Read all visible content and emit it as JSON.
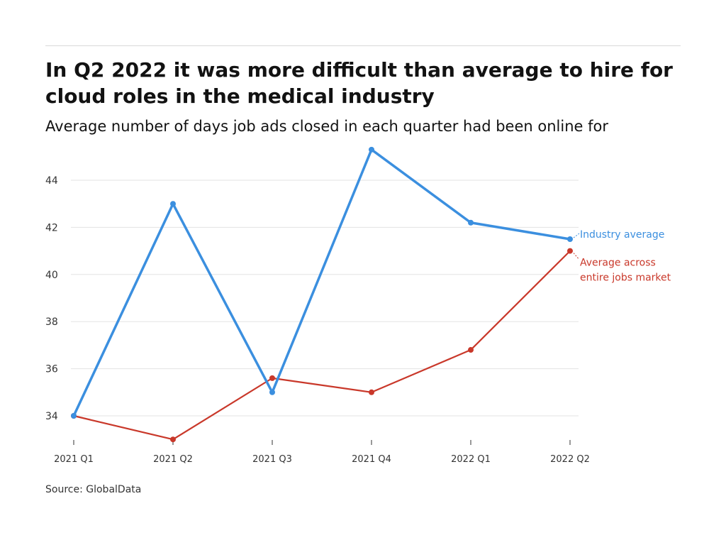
{
  "header": {
    "title": "In Q2 2022 it was more difficult than average to hire for cloud roles in the medical industry",
    "subtitle": "Average number of days job ads closed in each quarter had been online for"
  },
  "footer": {
    "source": "Source: GlobalData"
  },
  "colors": {
    "industry": "#3b8fdf",
    "market": "#c9382a",
    "grid": "#e3e3e3",
    "axis": "#333333"
  },
  "chart_data": {
    "type": "line",
    "title": "In Q2 2022 it was more difficult than average to hire for cloud roles in the medical industry",
    "subtitle": "Average number of days job ads closed in each quarter had been online for",
    "categories": [
      "2021 Q1",
      "2021 Q2",
      "2021 Q3",
      "2021 Q4",
      "2022 Q1",
      "2022 Q2"
    ],
    "series": [
      {
        "name": "Industry average",
        "label_lines": [
          "Industry average"
        ],
        "color": "#3b8fdf",
        "values": [
          34.0,
          43.0,
          35.0,
          45.3,
          42.2,
          41.5
        ]
      },
      {
        "name": "Average across entire jobs market",
        "label_lines": [
          "Average across",
          "entire jobs market"
        ],
        "color": "#c9382a",
        "values": [
          34.0,
          33.0,
          35.6,
          35.0,
          36.8,
          41.0
        ]
      }
    ],
    "yticks": [
      34,
      36,
      38,
      40,
      42,
      44
    ],
    "ylim": [
      33,
      45.3
    ],
    "xlabel": "",
    "ylabel": "",
    "grid": true,
    "legend": "right-of-line-ends",
    "source": "Source: GlobalData"
  }
}
